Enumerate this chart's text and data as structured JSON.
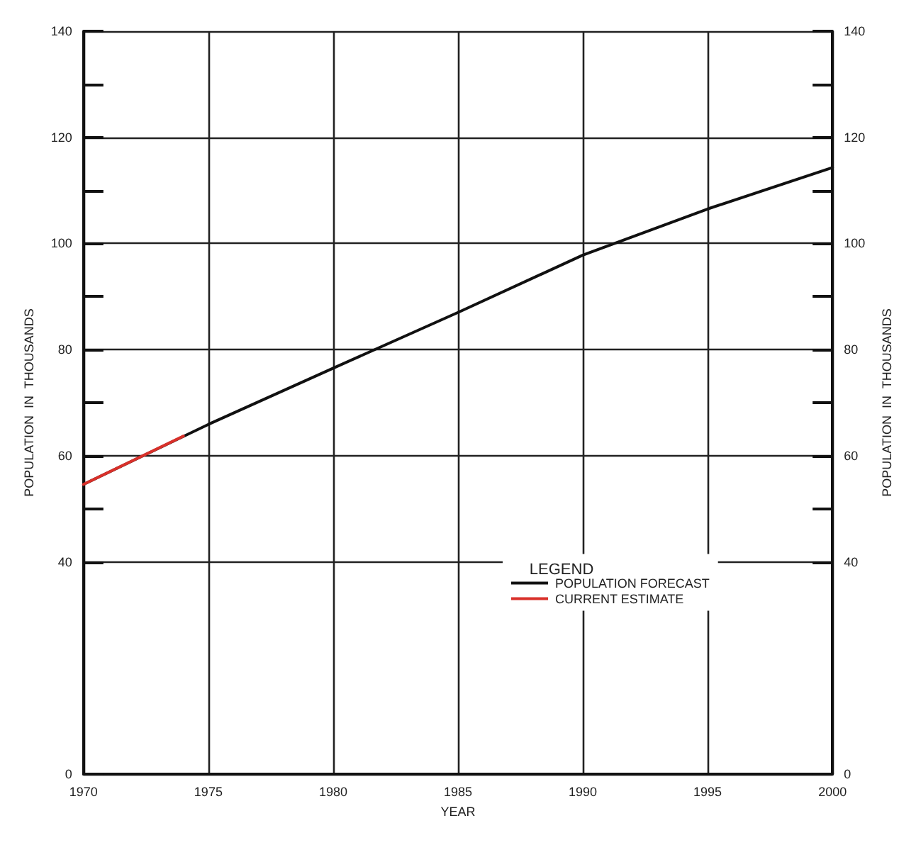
{
  "chart_data": {
    "type": "line",
    "xlabel": "YEAR",
    "ylabel": "POPULATION  IN  THOUSANDS",
    "y2label": "POPULATION  IN  THOUSANDS",
    "legend_title": "LEGEND",
    "legend": "right",
    "xlim": [
      1970,
      2000
    ],
    "xticks": [
      1970,
      1975,
      1980,
      1985,
      1990,
      1995,
      2000
    ],
    "ylim": [
      0,
      140
    ],
    "yticks": [
      0,
      40,
      {
        "value": 50,
        "label": null
      },
      60,
      {
        "value": 70,
        "label": null
      },
      80,
      {
        "value": 90,
        "label": null
      },
      100,
      {
        "value": 110,
        "label": null
      },
      120,
      {
        "value": 130,
        "label": null
      },
      140
    ],
    "y2lim": [
      0,
      140
    ],
    "y2ticks": [
      0,
      40,
      {
        "value": 50,
        "label": null
      },
      60,
      {
        "value": 70,
        "label": null
      },
      80,
      {
        "value": 90,
        "label": null
      },
      100,
      {
        "value": 110,
        "label": null
      },
      120,
      {
        "value": 130,
        "label": null
      },
      140
    ],
    "grid": true,
    "marker": "none",
    "line_style": "solid",
    "series": [
      {
        "name": "POPULATION FORECAST",
        "color": "#111111",
        "x": [
          1970,
          1975,
          1980,
          1985,
          1990,
          1995,
          2000
        ],
        "values": [
          54.6,
          65.9,
          76.5,
          87,
          97.8,
          106.5,
          114.3
        ]
      },
      {
        "name": "CURRENT ESTIMATE",
        "color": "#d9302a",
        "x": [
          1970,
          1974
        ],
        "values": [
          54.6,
          63.7
        ]
      }
    ]
  }
}
